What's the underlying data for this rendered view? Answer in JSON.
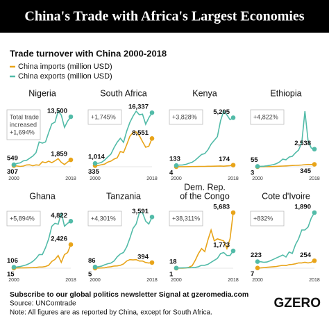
{
  "header": {
    "title": "China's Trade with Africa's Largest Economies"
  },
  "chart_data": {
    "type": "line",
    "subtitle": "Trade turnover with China 2000-2018",
    "x": [
      2000,
      2001,
      2002,
      2003,
      2004,
      2005,
      2006,
      2007,
      2008,
      2009,
      2010,
      2011,
      2012,
      2013,
      2014,
      2015,
      2016,
      2017,
      2018
    ],
    "xticks": [
      2000,
      2018
    ],
    "series": [
      {
        "name": "China imports (million USD)",
        "color": "#e8a419"
      },
      {
        "name": "China exports (million USD)",
        "color": "#52bba8"
      }
    ],
    "panels": [
      {
        "name": [
          "Nigeria"
        ],
        "annotation": [
          "Total trade",
          "increased",
          "+1,694%"
        ],
        "imports": {
          "values": [
            307,
            200,
            100,
            180,
            480,
            530,
            270,
            500,
            420,
            1330,
            1100,
            1500,
            1100,
            1600,
            2200,
            1200,
            600,
            1300,
            1859
          ],
          "value_labels": [
            "307",
            null,
            null,
            null,
            null,
            null,
            null,
            null,
            null,
            null,
            null,
            null,
            null,
            null,
            null,
            null,
            null,
            null,
            "1,859"
          ]
        },
        "exports": {
          "values": [
            549,
            900,
            1050,
            1600,
            1720,
            2300,
            2860,
            3800,
            6700,
            6370,
            6700,
            9210,
            11590,
            12040,
            15000,
            13950,
            10620,
            12300,
            13500
          ],
          "value_labels": [
            "549",
            null,
            null,
            null,
            null,
            null,
            null,
            null,
            null,
            null,
            null,
            null,
            null,
            null,
            null,
            null,
            null,
            null,
            "13,500"
          ]
        }
      },
      {
        "name": [
          "South Africa"
        ],
        "annotation": [
          "+1,745%"
        ],
        "imports": {
          "values": [
            335,
            400,
            600,
            800,
            1400,
            1700,
            2300,
            2700,
            4600,
            4300,
            6700,
            9200,
            10400,
            10500,
            9400,
            7600,
            5900,
            6200,
            8551
          ],
          "value_labels": [
            "335",
            null,
            null,
            null,
            null,
            null,
            null,
            null,
            null,
            null,
            null,
            null,
            null,
            null,
            null,
            null,
            null,
            null,
            "8,551"
          ]
        },
        "exports": {
          "values": [
            1014,
            1050,
            1300,
            2000,
            2950,
            3830,
            5770,
            7430,
            8620,
            7370,
            10800,
            13400,
            15300,
            16800,
            15700,
            15900,
            12850,
            14800,
            16337
          ],
          "value_labels": [
            "1,014",
            null,
            null,
            null,
            null,
            null,
            null,
            null,
            null,
            null,
            null,
            null,
            null,
            null,
            null,
            null,
            null,
            null,
            "16,337"
          ]
        }
      },
      {
        "name": [
          "Kenya"
        ],
        "annotation": [
          "+3,828%"
        ],
        "imports": {
          "values": [
            4,
            6,
            8,
            10,
            15,
            20,
            25,
            30,
            35,
            40,
            50,
            55,
            60,
            70,
            80,
            60,
            90,
            120,
            174
          ],
          "value_labels": [
            "4",
            null,
            null,
            null,
            null,
            null,
            null,
            null,
            null,
            null,
            null,
            null,
            null,
            null,
            null,
            null,
            null,
            null,
            "174"
          ]
        },
        "exports": {
          "values": [
            133,
            180,
            190,
            250,
            370,
            480,
            700,
            1000,
            1300,
            1400,
            1800,
            2400,
            2800,
            3200,
            4900,
            5900,
            5500,
            5000,
            5205
          ],
          "value_labels": [
            "133",
            null,
            null,
            null,
            null,
            null,
            null,
            null,
            null,
            null,
            null,
            null,
            null,
            null,
            null,
            null,
            null,
            null,
            "5,205"
          ]
        }
      },
      {
        "name": [
          "Ethiopia"
        ],
        "annotation": [
          "+4,822%"
        ],
        "imports": {
          "values": [
            3,
            5,
            10,
            15,
            20,
            30,
            60,
            80,
            100,
            120,
            150,
            180,
            200,
            220,
            250,
            300,
            330,
            320,
            345
          ],
          "value_labels": [
            "3",
            null,
            null,
            null,
            null,
            null,
            null,
            null,
            null,
            null,
            null,
            null,
            null,
            null,
            null,
            null,
            null,
            null,
            "345"
          ]
        },
        "exports": {
          "values": [
            55,
            60,
            80,
            130,
            220,
            300,
            450,
            700,
            1100,
            1000,
            1400,
            1500,
            2000,
            2400,
            3500,
            8000,
            3700,
            2700,
            2538
          ],
          "value_labels": [
            "55",
            null,
            null,
            null,
            null,
            null,
            null,
            null,
            null,
            null,
            null,
            null,
            null,
            null,
            null,
            null,
            null,
            null,
            "2,538"
          ]
        }
      },
      {
        "name": [
          "Ghana"
        ],
        "annotation": [
          "+5,894%"
        ],
        "imports": {
          "values": [
            15,
            20,
            25,
            30,
            40,
            50,
            60,
            80,
            120,
            120,
            180,
            300,
            700,
            900,
            1300,
            600,
            1400,
            1600,
            2426
          ],
          "value_labels": [
            "15",
            null,
            null,
            null,
            null,
            null,
            null,
            null,
            null,
            null,
            null,
            null,
            null,
            null,
            null,
            null,
            null,
            null,
            "2,426"
          ]
        },
        "exports": {
          "values": [
            106,
            130,
            170,
            260,
            350,
            500,
            700,
            1000,
            1400,
            1400,
            2100,
            3000,
            4300,
            4600,
            4500,
            5700,
            4300,
            4600,
            4822
          ],
          "value_labels": [
            "106",
            null,
            null,
            null,
            null,
            null,
            null,
            null,
            null,
            null,
            null,
            null,
            null,
            null,
            null,
            null,
            null,
            null,
            "4,822"
          ]
        }
      },
      {
        "name": [
          "Tanzania"
        ],
        "annotation": [
          "+4,301%"
        ],
        "imports": {
          "values": [
            5,
            10,
            15,
            30,
            80,
            100,
            150,
            160,
            200,
            300,
            500,
            600,
            580,
            600,
            500,
            500,
            400,
            360,
            394
          ],
          "value_labels": [
            "5",
            null,
            null,
            null,
            null,
            null,
            null,
            null,
            null,
            null,
            null,
            null,
            null,
            null,
            null,
            null,
            null,
            null,
            "394"
          ]
        },
        "exports": {
          "values": [
            86,
            100,
            140,
            240,
            310,
            360,
            500,
            800,
            1000,
            1100,
            1500,
            2100,
            2800,
            3100,
            3900,
            3900,
            3300,
            3100,
            3591
          ],
          "value_labels": [
            "86",
            null,
            null,
            null,
            null,
            null,
            null,
            null,
            null,
            null,
            null,
            null,
            null,
            null,
            null,
            null,
            null,
            null,
            "3,591"
          ]
        }
      },
      {
        "name": [
          "Dem. Rep.",
          "of the Congo"
        ],
        "annotation": [
          "+38,311%"
        ],
        "imports": {
          "values": [
            1,
            5,
            10,
            20,
            100,
            250,
            800,
            1500,
            2000,
            1700,
            2900,
            3900,
            2800,
            3000,
            2900,
            2800,
            2000,
            3000,
            5683
          ],
          "value_labels": [
            "1",
            null,
            null,
            null,
            null,
            null,
            null,
            null,
            null,
            null,
            null,
            null,
            null,
            null,
            null,
            null,
            null,
            null,
            "5,683"
          ]
        },
        "exports": {
          "values": [
            18,
            20,
            25,
            40,
            50,
            60,
            80,
            150,
            300,
            300,
            400,
            600,
            800,
            1000,
            1500,
            1600,
            1300,
            1300,
            1773
          ],
          "value_labels": [
            "18",
            null,
            null,
            null,
            null,
            null,
            null,
            null,
            null,
            null,
            null,
            null,
            null,
            null,
            null,
            null,
            null,
            null,
            "1,773"
          ]
        }
      },
      {
        "name": [
          "Cote d'Ivoire"
        ],
        "annotation": [
          "+832%"
        ],
        "imports": {
          "values": [
            7,
            10,
            20,
            30,
            40,
            50,
            60,
            80,
            100,
            90,
            120,
            130,
            150,
            180,
            180,
            200,
            180,
            200,
            254
          ],
          "value_labels": [
            "7",
            null,
            null,
            null,
            null,
            null,
            null,
            null,
            null,
            null,
            null,
            null,
            null,
            null,
            null,
            null,
            null,
            null,
            "254"
          ]
        },
        "exports": {
          "values": [
            223,
            220,
            200,
            210,
            250,
            300,
            350,
            400,
            450,
            380,
            550,
            500,
            800,
            1000,
            1300,
            1300,
            1400,
            1700,
            1890
          ],
          "value_labels": [
            "223",
            null,
            null,
            null,
            null,
            null,
            null,
            null,
            null,
            null,
            null,
            null,
            null,
            null,
            null,
            null,
            null,
            null,
            "1,890"
          ]
        }
      }
    ]
  },
  "footer": {
    "subscribe": "Subscribe to our global politics newsletter Signal at gzeromedia.com",
    "source": "Source: UNComtrade",
    "note": "Note: All figures are as reported by China, except for South Africa.",
    "logo": "GZERO"
  }
}
